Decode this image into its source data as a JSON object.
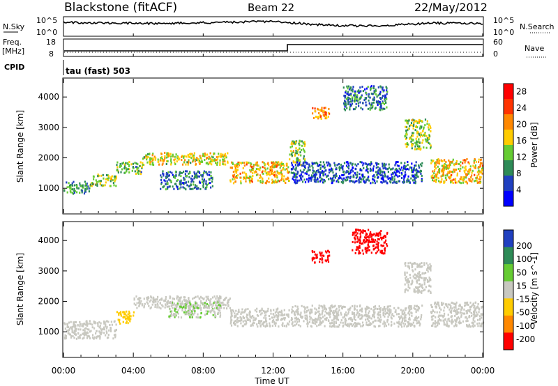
{
  "header": {
    "station": "Blackstone (fitACF)",
    "beam": "Beam 22",
    "date": "22/May/2012"
  },
  "aux": {
    "nsky_label": "N.Sky",
    "nsky_ticks": [
      "10^5",
      "10^0"
    ],
    "nsearch_label": "N.Search",
    "nsearch_ticks": [
      "10^5",
      "10^0"
    ],
    "freq_label": "Freq.",
    "freq_unit": "[MHz]",
    "freq_ticks": [
      "18",
      "8"
    ],
    "nave_label": "Nave",
    "nave_ticks": [
      "60",
      "0"
    ],
    "cpid_label": "CPID",
    "cpid_value": "tau (fast) 503"
  },
  "chart_data": [
    {
      "type": "heatmap",
      "title": "",
      "xlabel": "Time UT",
      "ylabel": "Slant Range [km]",
      "x_ticks": [
        "00:00",
        "04:00",
        "08:00",
        "12:00",
        "16:00",
        "20:00",
        "00:00"
      ],
      "y_ticks": [
        1000,
        2000,
        3000,
        4000
      ],
      "ylim": [
        180,
        4600
      ],
      "colorbar": {
        "label": "Power [dB]",
        "ticks": [
          4,
          8,
          12,
          16,
          20,
          24,
          28
        ],
        "range": [
          0,
          30
        ],
        "colors": [
          "#0000ff",
          "#2040c0",
          "#2e8b57",
          "#66cc33",
          "#ffcc00",
          "#ff8800",
          "#ff3300",
          "#ff0000"
        ]
      },
      "echo_regions": [
        {
          "x": [
            0.0,
            1.5
          ],
          "y": [
            850,
            1250
          ],
          "value": 10
        },
        {
          "x": [
            1.5,
            3.0
          ],
          "y": [
            1100,
            1500
          ],
          "value": 14
        },
        {
          "x": [
            3.0,
            4.5
          ],
          "y": [
            1500,
            1900
          ],
          "value": 12
        },
        {
          "x": [
            4.5,
            9.5
          ],
          "y": [
            1800,
            2200
          ],
          "value": 16
        },
        {
          "x": [
            5.5,
            8.5
          ],
          "y": [
            1000,
            1600
          ],
          "value": 8
        },
        {
          "x": [
            9.5,
            12.9
          ],
          "y": [
            1200,
            1900
          ],
          "value": 18
        },
        {
          "x": [
            12.9,
            13.8
          ],
          "y": [
            1800,
            2600
          ],
          "value": 14
        },
        {
          "x": [
            14.2,
            15.2
          ],
          "y": [
            3300,
            3700
          ],
          "value": 20
        },
        {
          "x": [
            13.0,
            20.5
          ],
          "y": [
            1200,
            1900
          ],
          "value": 6
        },
        {
          "x": [
            16.0,
            18.5
          ],
          "y": [
            3600,
            4400
          ],
          "value": 8
        },
        {
          "x": [
            19.5,
            21.0
          ],
          "y": [
            2300,
            3300
          ],
          "value": 14
        },
        {
          "x": [
            21.0,
            24.0
          ],
          "y": [
            1200,
            2000
          ],
          "value": 18
        }
      ]
    },
    {
      "type": "heatmap",
      "title": "",
      "xlabel": "Time UT",
      "ylabel": "Slant Range [km]",
      "x_ticks": [
        "00:00",
        "04:00",
        "08:00",
        "12:00",
        "16:00",
        "20:00",
        "00:00"
      ],
      "y_ticks": [
        1000,
        2000,
        3000,
        4000
      ],
      "ylim": [
        180,
        4600
      ],
      "colorbar": {
        "label": "Velocity [m s^-1]",
        "ticks": [
          200,
          100,
          50,
          15,
          -15,
          -50,
          -100,
          -200
        ],
        "range": [
          -250,
          250
        ],
        "colors": [
          "#2040c0",
          "#2e8b57",
          "#66cc33",
          "#c8c8c0",
          "#ffcc00",
          "#ff8800",
          "#ff0000"
        ]
      },
      "echo_regions": [
        {
          "x": [
            0.0,
            3.0
          ],
          "y": [
            800,
            1400
          ],
          "value": 0
        },
        {
          "x": [
            3.0,
            4.0
          ],
          "y": [
            1300,
            1700
          ],
          "value": -60
        },
        {
          "x": [
            4.0,
            9.5
          ],
          "y": [
            1800,
            2200
          ],
          "value": 0
        },
        {
          "x": [
            6.0,
            9.0
          ],
          "y": [
            1500,
            2000
          ],
          "value": 30
        },
        {
          "x": [
            9.5,
            12.9
          ],
          "y": [
            1200,
            1800
          ],
          "value": 0
        },
        {
          "x": [
            14.2,
            15.2
          ],
          "y": [
            3300,
            3700
          ],
          "value": -220
        },
        {
          "x": [
            16.5,
            18.5
          ],
          "y": [
            3600,
            4400
          ],
          "value": -220
        },
        {
          "x": [
            13.0,
            20.5
          ],
          "y": [
            1200,
            1900
          ],
          "value": 0
        },
        {
          "x": [
            19.5,
            21.0
          ],
          "y": [
            2300,
            3300
          ],
          "value": 0
        },
        {
          "x": [
            21.0,
            24.0
          ],
          "y": [
            1200,
            2000
          ],
          "value": 0
        }
      ]
    }
  ],
  "colors": {
    "axes": "#000000",
    "background": "#ffffff"
  }
}
